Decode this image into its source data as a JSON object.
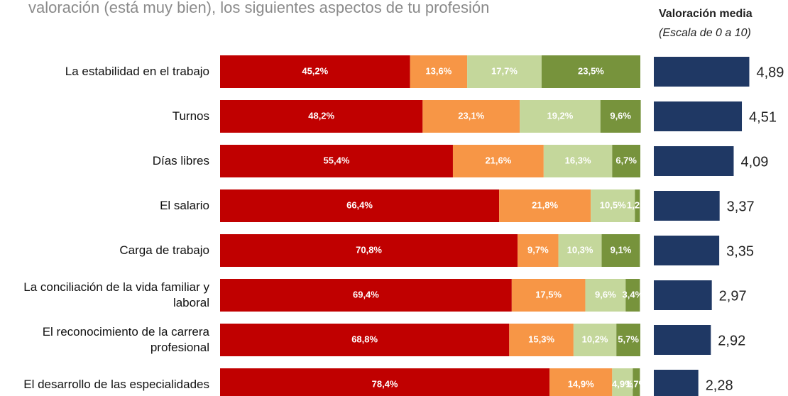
{
  "chart_data": [
    {
      "type": "stacked-bar-horizontal",
      "title": "valoración (está muy bien), los siguientes aspectos de tu profesión",
      "categories": [
        "La estabilidad en el trabajo",
        "Turnos",
        "Días libres",
        "El salario",
        "Carga de trabajo",
        "La conciliación de la vida familiar y\nlaboral",
        "El reconocimiento de la carrera\nprofesional",
        "El desarrollo de las especialidades"
      ],
      "xlim": [
        0,
        100
      ],
      "series": [
        {
          "color": "#c00000",
          "values": [
            45.2,
            48.2,
            55.4,
            66.4,
            70.8,
            69.4,
            68.8,
            78.4
          ],
          "value_labels": [
            "45,2%",
            "48,2%",
            "55,4%",
            "66,4%",
            "70,8%",
            "69,4%",
            "68,8%",
            "78,4%"
          ]
        },
        {
          "color": "#f79646",
          "values": [
            13.6,
            23.1,
            21.6,
            21.8,
            9.7,
            17.5,
            15.3,
            14.9
          ],
          "value_labels": [
            "13,6%",
            "23,1%",
            "21,6%",
            "21,8%",
            "9,7%",
            "17,5%",
            "15,3%",
            "14,9%"
          ]
        },
        {
          "color": "#c4d79b",
          "values": [
            17.7,
            19.2,
            16.3,
            10.5,
            10.3,
            9.6,
            10.2,
            4.9
          ],
          "value_labels": [
            "17,7%",
            "19,2%",
            "16,3%",
            "10,5%",
            "10,3%",
            "9,6%",
            "10,2%",
            "4,9%"
          ]
        },
        {
          "color": "#77933c",
          "values": [
            23.5,
            9.6,
            6.7,
            1.2,
            9.1,
            3.4,
            5.7,
            1.7
          ],
          "value_labels": [
            "23,5%",
            "9,6%",
            "6,7%",
            "1,2%",
            "9,1%",
            "3,4%",
            "5,7%",
            "1,7%"
          ]
        }
      ]
    },
    {
      "type": "bar-horizontal",
      "title": "Valoración media",
      "subtitle": "(Escala de 0 a 10)",
      "xlim": [
        0,
        6
      ],
      "color": "#1f3864",
      "values": [
        4.89,
        4.51,
        4.09,
        3.37,
        3.35,
        2.97,
        2.92,
        2.28
      ],
      "value_labels": [
        "4,89",
        "4,51",
        "4,09",
        "3,37",
        "3,35",
        "2,97",
        "2,92",
        "2,28"
      ]
    }
  ]
}
